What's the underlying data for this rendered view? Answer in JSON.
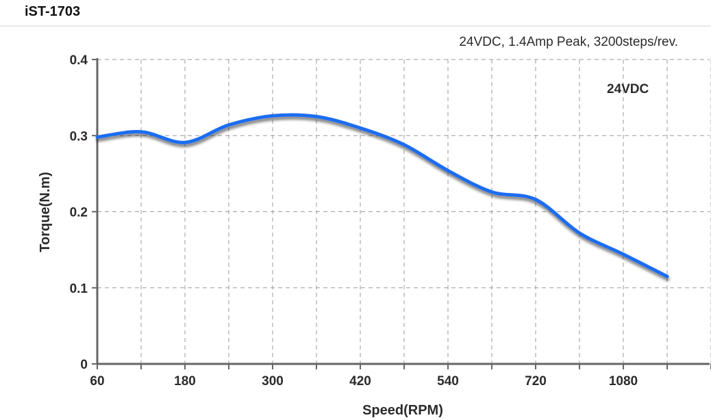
{
  "header": {
    "title": "iST-1703"
  },
  "chart_data": {
    "type": "line",
    "subtitle": "24VDC, 1.4Amp Peak, 3200steps/rev.",
    "xlabel": "Speed(RPM)",
    "ylabel": "Torque(N.m)",
    "x_tick_labels": [
      "60",
      "180",
      "300",
      "420",
      "540",
      "720",
      "1080"
    ],
    "y_tick_labels": [
      "0",
      "0.1",
      "0.2",
      "0.3",
      "0.4"
    ],
    "ylim": [
      0,
      0.4
    ],
    "grid": true,
    "legend_position": "top-right",
    "colors": {
      "line": "#1f6df0",
      "axis": "#666666",
      "grid": "#9a9a9a"
    },
    "series": [
      {
        "name": "24VDC",
        "points": [
          {
            "x": "60",
            "y": 0.298
          },
          {
            "x": "120",
            "y": 0.305
          },
          {
            "x": "180",
            "y": 0.291
          },
          {
            "x": "240",
            "y": 0.314
          },
          {
            "x": "300",
            "y": 0.326
          },
          {
            "x": "360",
            "y": 0.325
          },
          {
            "x": "420",
            "y": 0.31
          },
          {
            "x": "480",
            "y": 0.288
          },
          {
            "x": "540",
            "y": 0.254
          },
          {
            "x": "600",
            "y": 0.226
          },
          {
            "x": "720",
            "y": 0.216
          },
          {
            "x": "840",
            "y": 0.172
          },
          {
            "x": "1080",
            "y": 0.144
          },
          {
            "x": "1200",
            "y": 0.115
          }
        ]
      }
    ]
  }
}
